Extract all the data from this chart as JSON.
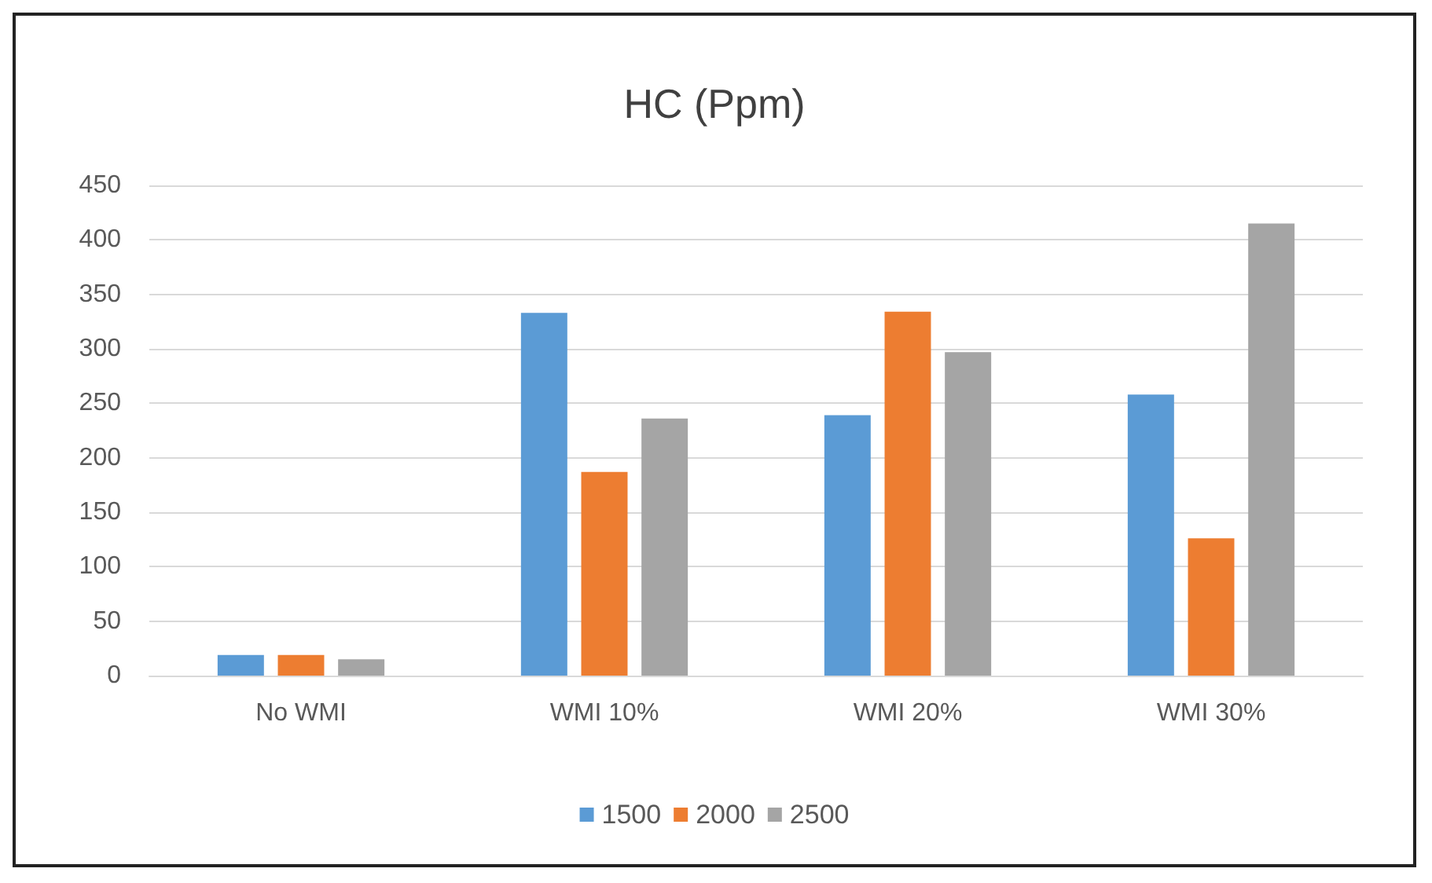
{
  "chart_data": {
    "type": "bar",
    "title": "HC (Ppm)",
    "categories": [
      "No WMI",
      "WMI 10%",
      "WMI 20%",
      "WMI 30%"
    ],
    "series": [
      {
        "name": "1500",
        "color": "#5b9bd5",
        "values": [
          19,
          333,
          239,
          258
        ]
      },
      {
        "name": "2000",
        "color": "#ed7d31",
        "values": [
          19,
          187,
          334,
          126
        ]
      },
      {
        "name": "2500",
        "color": "#a5a5a5",
        "values": [
          15,
          236,
          297,
          415
        ]
      }
    ],
    "ylim": [
      0,
      450
    ],
    "yticks": [
      0,
      50,
      100,
      150,
      200,
      250,
      300,
      350,
      400,
      450
    ],
    "grid": "y",
    "legend": "bottom"
  }
}
